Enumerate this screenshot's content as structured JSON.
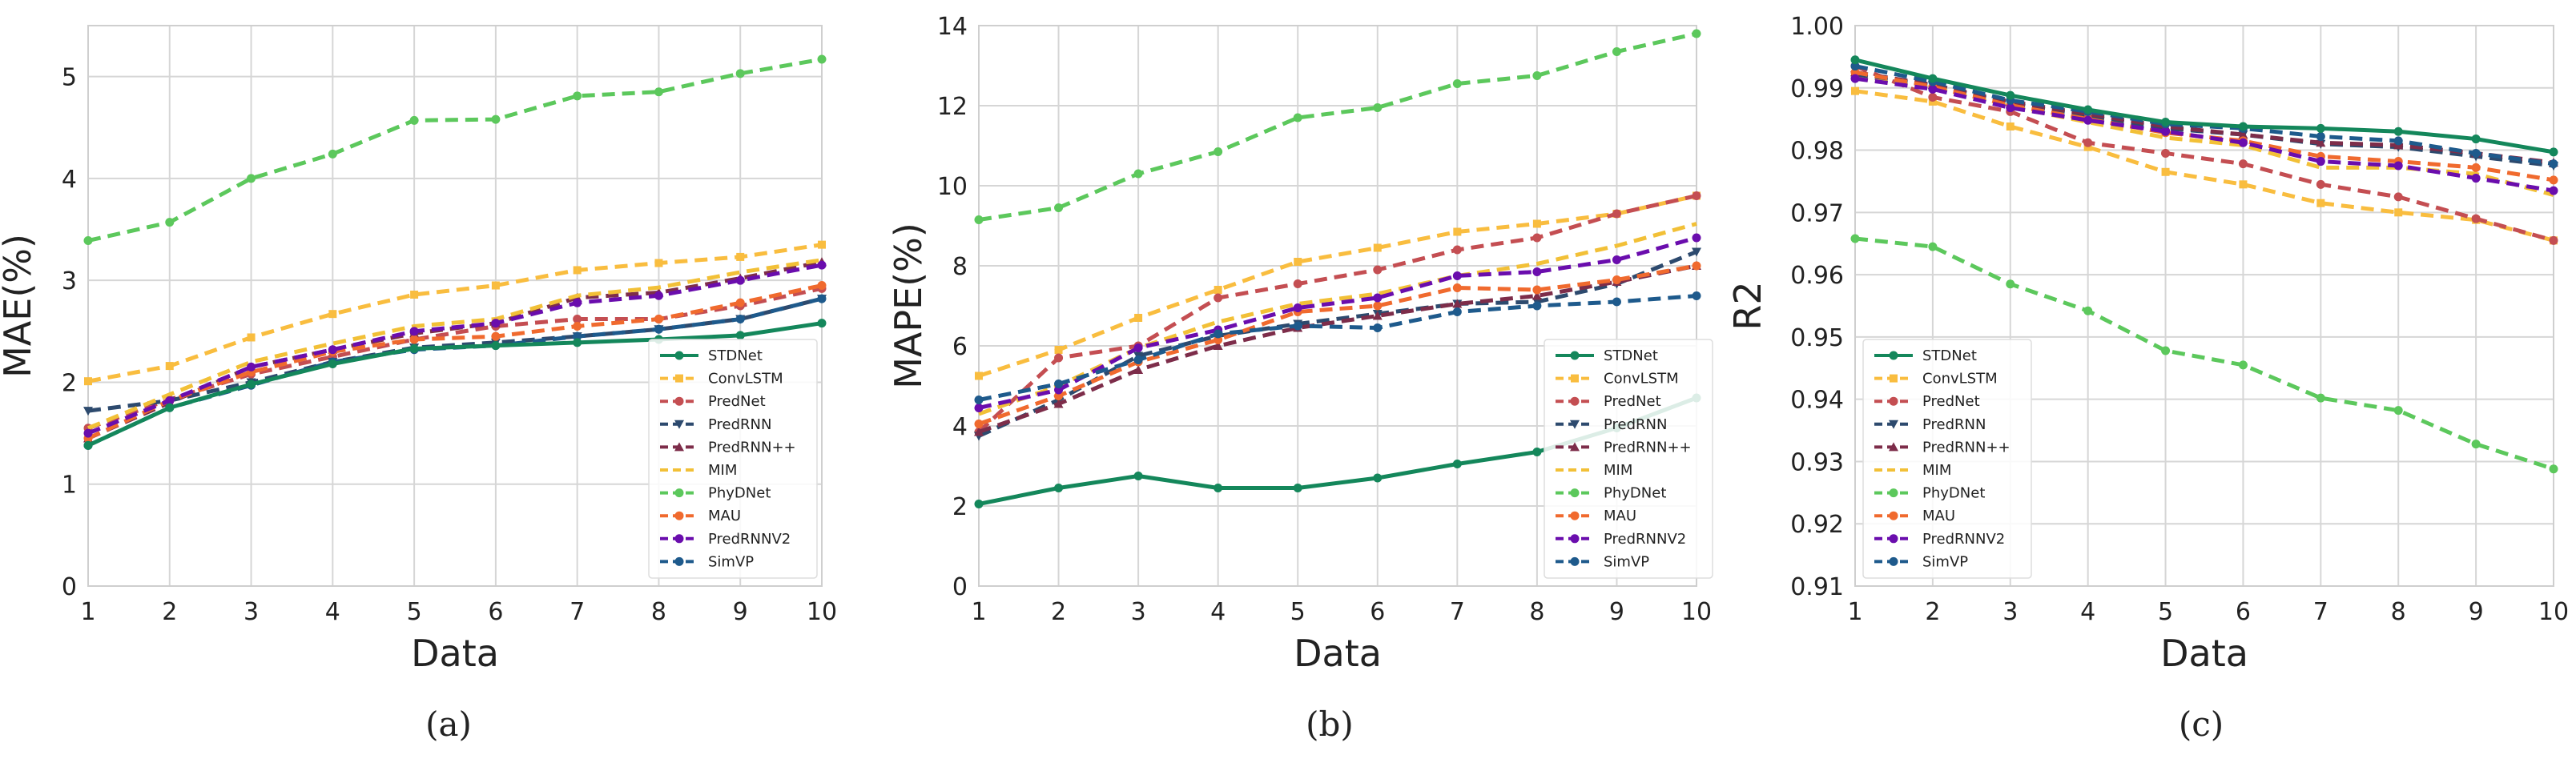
{
  "colors": {
    "STDNet": "#14875b",
    "ConvLSTM": "#f9bd3f",
    "PredNet": "#c44e52",
    "PredRNN": "#2d4a6e",
    "PredRNN++": "#7d2d4a",
    "MIM": "#f2c037",
    "PhyDNet": "#5cc85c",
    "MAU": "#f06a2e",
    "PredRNNV2": "#6a0dad",
    "SimVP": "#1e5a8c"
  },
  "panel_labels": [
    "(a)",
    "(b)",
    "(c)"
  ],
  "chart_data": [
    {
      "type": "line",
      "panel": "(a)",
      "xlabel": "Data",
      "ylabel": "MAE(%)",
      "x": [
        1,
        2,
        3,
        4,
        5,
        6,
        7,
        8,
        9,
        10
      ],
      "xlim": [
        1,
        10
      ],
      "ylim": [
        0,
        5.5
      ],
      "yticks": [
        0,
        1,
        2,
        3,
        4,
        5
      ],
      "yticklabels": [
        "0",
        "1",
        "2",
        "3",
        "4",
        "5"
      ],
      "legend": "lower-right",
      "series": [
        {
          "name": "STDNet",
          "style": "solid",
          "marker": "o",
          "values": [
            1.38,
            1.75,
            1.98,
            2.18,
            2.33,
            2.36,
            2.39,
            2.42,
            2.46,
            2.58
          ]
        },
        {
          "name": "ConvLSTM",
          "style": "dashed",
          "marker": "s",
          "values": [
            2.01,
            2.16,
            2.44,
            2.67,
            2.86,
            2.95,
            3.1,
            3.17,
            3.23,
            3.35
          ]
        },
        {
          "name": "PredNet",
          "style": "dashed",
          "marker": "o",
          "values": [
            1.55,
            1.83,
            2.08,
            2.25,
            2.42,
            2.55,
            2.62,
            2.62,
            2.75,
            2.92
          ]
        },
        {
          "name": "PredRNN",
          "style": "dashed",
          "marker": "v",
          "values": [
            1.72,
            1.82,
            2.0,
            2.2,
            2.34,
            2.39,
            2.45,
            2.52,
            2.62,
            2.82
          ]
        },
        {
          "name": "PredRNN++",
          "style": "dashed",
          "marker": "^",
          "values": [
            1.45,
            1.8,
            2.15,
            2.32,
            2.48,
            2.58,
            2.83,
            2.88,
            3.02,
            3.18
          ]
        },
        {
          "name": "MIM",
          "style": "dashed",
          "marker": "",
          "values": [
            1.55,
            1.88,
            2.2,
            2.38,
            2.55,
            2.62,
            2.85,
            2.93,
            3.08,
            3.2
          ]
        },
        {
          "name": "PhyDNet",
          "style": "dashed",
          "marker": "o",
          "values": [
            3.39,
            3.57,
            4.0,
            4.24,
            4.57,
            4.58,
            4.81,
            4.85,
            5.03,
            5.17
          ]
        },
        {
          "name": "MAU",
          "style": "dashed",
          "marker": "o",
          "values": [
            1.45,
            1.82,
            2.1,
            2.3,
            2.42,
            2.45,
            2.55,
            2.62,
            2.78,
            2.95
          ]
        },
        {
          "name": "PredRNNV2",
          "style": "dashed",
          "marker": "o",
          "values": [
            1.5,
            1.82,
            2.15,
            2.32,
            2.5,
            2.58,
            2.78,
            2.85,
            3.0,
            3.15
          ]
        },
        {
          "name": "SimVP",
          "style": "dashed",
          "marker": "o",
          "values": [
            1.38,
            1.75,
            1.97,
            2.2,
            2.32,
            2.36,
            2.45,
            2.52,
            2.62,
            2.82
          ]
        }
      ]
    },
    {
      "type": "line",
      "panel": "(b)",
      "xlabel": "Data",
      "ylabel": "MAPE(%)",
      "x": [
        1,
        2,
        3,
        4,
        5,
        6,
        7,
        8,
        9,
        10
      ],
      "xlim": [
        1,
        10
      ],
      "ylim": [
        0,
        14
      ],
      "yticks": [
        0,
        2,
        4,
        6,
        8,
        10,
        12,
        14
      ],
      "yticklabels": [
        "0",
        "2",
        "4",
        "6",
        "8",
        "10",
        "12",
        "14"
      ],
      "legend": "lower-right",
      "series": [
        {
          "name": "STDNet",
          "style": "solid",
          "marker": "o",
          "values": [
            2.05,
            2.45,
            2.75,
            2.45,
            2.45,
            2.7,
            3.05,
            3.35,
            3.95,
            4.7
          ]
        },
        {
          "name": "ConvLSTM",
          "style": "dashed",
          "marker": "s",
          "values": [
            5.25,
            5.9,
            6.7,
            7.4,
            8.1,
            8.45,
            8.85,
            9.05,
            9.3,
            9.75
          ]
        },
        {
          "name": "PredNet",
          "style": "dashed",
          "marker": "o",
          "values": [
            3.85,
            5.7,
            6.0,
            7.2,
            7.55,
            7.9,
            8.4,
            8.7,
            9.3,
            9.75
          ]
        },
        {
          "name": "PredRNN",
          "style": "dashed",
          "marker": "v",
          "values": [
            3.75,
            4.65,
            5.75,
            6.25,
            6.55,
            6.8,
            7.05,
            7.1,
            7.55,
            8.35
          ]
        },
        {
          "name": "PredRNN++",
          "style": "dashed",
          "marker": "^",
          "values": [
            3.85,
            4.55,
            5.4,
            6.0,
            6.45,
            6.75,
            7.05,
            7.25,
            7.6,
            8.0
          ]
        },
        {
          "name": "MIM",
          "style": "dashed",
          "marker": "",
          "values": [
            4.3,
            5.0,
            5.95,
            6.6,
            7.05,
            7.3,
            7.75,
            8.05,
            8.5,
            9.05
          ]
        },
        {
          "name": "PhyDNet",
          "style": "dashed",
          "marker": "o",
          "values": [
            9.15,
            9.45,
            10.3,
            10.85,
            11.7,
            11.95,
            12.55,
            12.75,
            13.35,
            13.8
          ]
        },
        {
          "name": "MAU",
          "style": "dashed",
          "marker": "o",
          "values": [
            4.05,
            4.75,
            5.6,
            6.15,
            6.85,
            7.0,
            7.45,
            7.4,
            7.65,
            8.0
          ]
        },
        {
          "name": "PredRNNV2",
          "style": "dashed",
          "marker": "o",
          "values": [
            4.45,
            4.9,
            5.95,
            6.4,
            6.95,
            7.2,
            7.75,
            7.85,
            8.15,
            8.7
          ]
        },
        {
          "name": "SimVP",
          "style": "dashed",
          "marker": "o",
          "values": [
            4.65,
            5.05,
            5.65,
            6.3,
            6.5,
            6.45,
            6.85,
            7.0,
            7.1,
            7.25
          ]
        }
      ]
    },
    {
      "type": "line",
      "panel": "(c)",
      "xlabel": "Data",
      "ylabel": "R2",
      "x": [
        1,
        2,
        3,
        4,
        5,
        6,
        7,
        8,
        9,
        10
      ],
      "xlim": [
        1,
        10
      ],
      "ylim": [
        0.91,
        1.0
      ],
      "yticks": [
        0.91,
        0.92,
        0.93,
        0.94,
        0.95,
        0.96,
        0.97,
        0.98,
        0.99,
        1.0
      ],
      "yticklabels": [
        "0.91",
        "0.92",
        "0.93",
        "0.94",
        "0.95",
        "0.96",
        "0.97",
        "0.98",
        "0.99",
        "1.00"
      ],
      "legend": "lower-left",
      "series": [
        {
          "name": "STDNet",
          "style": "solid",
          "marker": "o",
          "values": [
            0.9945,
            0.9915,
            0.9888,
            0.9865,
            0.9845,
            0.9838,
            0.9835,
            0.983,
            0.9818,
            0.9797
          ]
        },
        {
          "name": "ConvLSTM",
          "style": "dashed",
          "marker": "s",
          "values": [
            0.9895,
            0.9878,
            0.9838,
            0.9805,
            0.9765,
            0.9745,
            0.9715,
            0.97,
            0.9688,
            0.9655
          ]
        },
        {
          "name": "PredNet",
          "style": "dashed",
          "marker": "o",
          "values": [
            0.9935,
            0.9885,
            0.9862,
            0.9812,
            0.9795,
            0.9778,
            0.9745,
            0.9725,
            0.969,
            0.9655
          ]
        },
        {
          "name": "PredRNN",
          "style": "dashed",
          "marker": "v",
          "values": [
            0.992,
            0.9905,
            0.9875,
            0.9855,
            0.9835,
            0.9825,
            0.981,
            0.9805,
            0.979,
            0.9775
          ]
        },
        {
          "name": "PredRNN++",
          "style": "dashed",
          "marker": "^",
          "values": [
            0.9925,
            0.9905,
            0.9878,
            0.9858,
            0.9838,
            0.9825,
            0.9812,
            0.9808,
            0.9795,
            0.978
          ]
        },
        {
          "name": "MIM",
          "style": "dashed",
          "marker": "",
          "values": [
            0.9915,
            0.99,
            0.987,
            0.9845,
            0.982,
            0.9808,
            0.9772,
            0.9772,
            0.9762,
            0.9728
          ]
        },
        {
          "name": "PhyDNet",
          "style": "dashed",
          "marker": "o",
          "values": [
            0.9658,
            0.9645,
            0.9585,
            0.9542,
            0.9478,
            0.9455,
            0.9402,
            0.9382,
            0.9328,
            0.9288
          ]
        },
        {
          "name": "MAU",
          "style": "dashed",
          "marker": "o",
          "values": [
            0.9925,
            0.9902,
            0.9872,
            0.985,
            0.9828,
            0.9815,
            0.979,
            0.9782,
            0.9772,
            0.9752
          ]
        },
        {
          "name": "PredRNNV2",
          "style": "dashed",
          "marker": "o",
          "values": [
            0.9915,
            0.9898,
            0.9868,
            0.9848,
            0.983,
            0.9812,
            0.9782,
            0.9775,
            0.9755,
            0.9735
          ]
        },
        {
          "name": "SimVP",
          "style": "dashed",
          "marker": "o",
          "values": [
            0.9935,
            0.991,
            0.988,
            0.9862,
            0.9842,
            0.9835,
            0.9822,
            0.9815,
            0.9795,
            0.9778
          ]
        }
      ]
    }
  ]
}
